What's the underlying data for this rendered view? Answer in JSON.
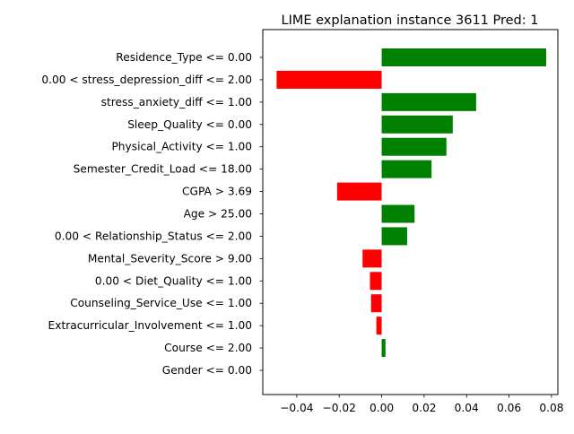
{
  "chart_data": {
    "type": "bar",
    "orientation": "horizontal",
    "title": "LIME explanation instance 3611 Pred: 1",
    "xlabel": "",
    "ylabel": "",
    "xlim": [
      -0.056,
      0.083
    ],
    "xticks": [
      -0.04,
      -0.02,
      0.0,
      0.02,
      0.04,
      0.06,
      0.08
    ],
    "xtick_labels": [
      "−0.04",
      "−0.02",
      "0.00",
      "0.02",
      "0.04",
      "0.06",
      "0.08"
    ],
    "grid": false,
    "positive_color": "#008000",
    "negative_color": "#ff0000",
    "categories": [
      "Residence_Type <= 0.00",
      "0.00 < stress_depression_diff <= 2.00",
      "stress_anxiety_diff <= 1.00",
      "Sleep_Quality <= 0.00",
      "Physical_Activity <= 1.00",
      "Semester_Credit_Load <= 18.00",
      "CGPA > 3.69",
      "Age > 25.00",
      "0.00 < Relationship_Status <= 2.00",
      "Mental_Severity_Score > 9.00",
      "0.00 < Diet_Quality <= 1.00",
      "Counseling_Service_Use <= 1.00",
      "Extracurricular_Involvement <= 1.00",
      "Course <= 2.00",
      "Gender <= 0.00"
    ],
    "values": [
      0.0775,
      -0.0495,
      0.0445,
      0.0335,
      0.0305,
      0.0235,
      -0.021,
      0.0155,
      0.012,
      -0.009,
      -0.0055,
      -0.005,
      -0.0025,
      0.0018,
      0.0
    ]
  }
}
